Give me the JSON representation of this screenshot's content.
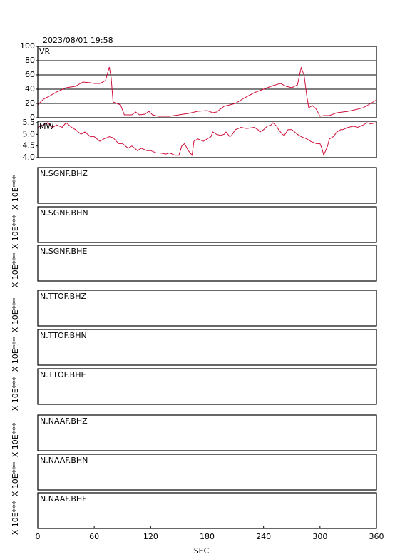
{
  "title": "2023/08/01 19:58",
  "chart_data": [
    {
      "type": "line",
      "label": "VR",
      "color": "#d0103a",
      "grid": true,
      "xlim": [
        0,
        360
      ],
      "ylim": [
        0,
        100
      ],
      "yticks": [
        0,
        20,
        40,
        60,
        80,
        100
      ],
      "x": [
        0,
        6,
        12,
        20,
        30,
        40,
        48,
        56,
        60,
        66,
        72,
        76,
        78,
        80,
        84,
        88,
        92,
        100,
        104,
        108,
        114,
        118,
        122,
        128,
        140,
        150,
        160,
        170,
        180,
        186,
        190,
        198,
        204,
        210,
        220,
        230,
        240,
        250,
        258,
        264,
        270,
        276,
        280,
        283,
        286,
        288,
        292,
        296,
        300,
        304,
        310,
        318,
        330,
        340,
        346,
        354,
        360
      ],
      "values": [
        18,
        26,
        30,
        36,
        42,
        44,
        50,
        49,
        48,
        48,
        52,
        71,
        56,
        22,
        20,
        18,
        4,
        4,
        8,
        4,
        5,
        9,
        4,
        2,
        2,
        4,
        6,
        9,
        10,
        7,
        8,
        16,
        18,
        20,
        28,
        35,
        40,
        45,
        48,
        44,
        42,
        46,
        70,
        60,
        30,
        14,
        17,
        12,
        2,
        3,
        3,
        7,
        9,
        12,
        14,
        20,
        25
      ]
    },
    {
      "type": "line",
      "label": "MW",
      "color": "#d0103a",
      "grid": false,
      "xlim": [
        0,
        360
      ],
      "ylim": [
        4.0,
        5.56
      ],
      "yticks": [
        {
          "value": 4,
          "label": "4.0"
        },
        4.5,
        {
          "value": 5,
          "label": "5.0"
        },
        5.5
      ],
      "x": [
        0,
        6,
        10,
        16,
        20,
        26,
        30,
        36,
        40,
        46,
        50,
        56,
        60,
        66,
        70,
        76,
        80,
        86,
        90,
        96,
        100,
        106,
        110,
        116,
        120,
        126,
        130,
        136,
        140,
        146,
        150,
        153,
        156,
        160,
        164,
        166,
        170,
        176,
        180,
        184,
        186,
        190,
        194,
        198,
        200,
        204,
        206,
        210,
        216,
        222,
        230,
        234,
        236,
        240,
        244,
        248,
        250,
        254,
        256,
        260,
        262,
        266,
        270,
        276,
        280,
        286,
        290,
        296,
        300,
        302,
        304,
        308,
        310,
        314,
        318,
        322,
        324,
        330,
        336,
        340,
        346,
        350,
        354,
        360
      ],
      "values": [
        5.3,
        5.4,
        5.5,
        5.3,
        5.4,
        5.3,
        5.5,
        5.3,
        5.2,
        5.0,
        5.1,
        4.9,
        4.9,
        4.7,
        4.8,
        4.9,
        4.85,
        4.6,
        4.6,
        4.4,
        4.5,
        4.3,
        4.4,
        4.3,
        4.3,
        4.2,
        4.2,
        4.15,
        4.2,
        4.1,
        4.1,
        4.5,
        4.6,
        4.3,
        4.1,
        4.7,
        4.8,
        4.7,
        4.8,
        4.9,
        5.1,
        5.0,
        4.95,
        5.0,
        5.1,
        4.9,
        4.95,
        5.2,
        5.3,
        5.25,
        5.3,
        5.2,
        5.1,
        5.2,
        5.35,
        5.4,
        5.5,
        5.35,
        5.2,
        5.0,
        4.95,
        5.2,
        5.2,
        5.0,
        4.9,
        4.8,
        4.7,
        4.6,
        4.6,
        4.4,
        4.1,
        4.5,
        4.8,
        4.9,
        5.1,
        5.2,
        5.2,
        5.3,
        5.35,
        5.3,
        5.4,
        5.5,
        5.45,
        5.5
      ]
    }
  ],
  "panels": [
    {
      "label": "N.SGNF.BHZ",
      "ylabel": "X 10E***"
    },
    {
      "label": "N.SGNF.BHN",
      "ylabel": "X 10E***"
    },
    {
      "label": "N.SGNF.BHE",
      "ylabel": "X 10E***"
    },
    {
      "label": "N.TTOF.BHZ",
      "ylabel": "X 10E***"
    },
    {
      "label": "N.TTOF.BHN",
      "ylabel": "X 10E***"
    },
    {
      "label": "N.TTOF.BHE",
      "ylabel": "X 10E***"
    },
    {
      "label": "N.NAAF.BHZ",
      "ylabel": "X 10E***"
    },
    {
      "label": "N.NAAF.BHN",
      "ylabel": "X 10E***"
    },
    {
      "label": "N.NAAF.BHE",
      "ylabel": "X 10E***"
    }
  ],
  "x_axis": {
    "label": "SEC",
    "xlim": [
      0,
      360
    ],
    "xticks": [
      0,
      60,
      120,
      180,
      240,
      300,
      360
    ]
  }
}
